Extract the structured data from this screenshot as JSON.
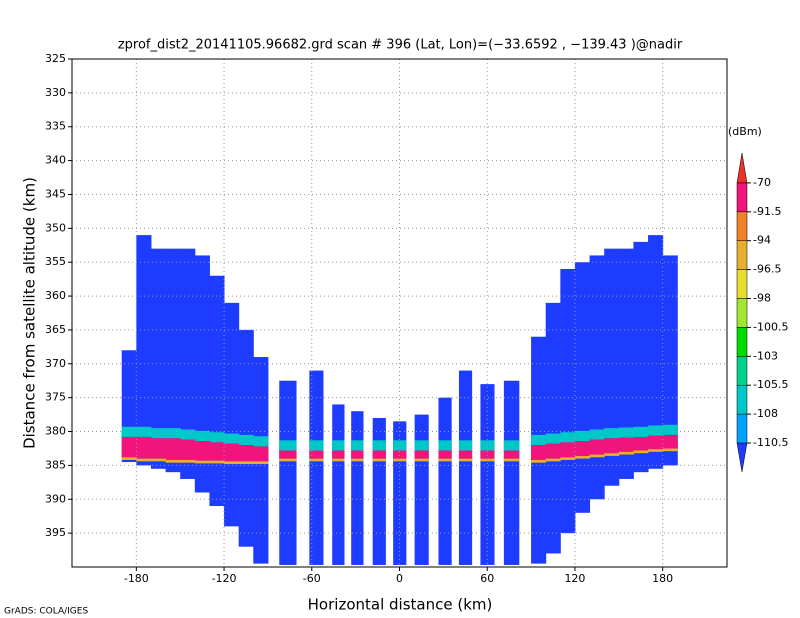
{
  "chart_data": {
    "type": "profile",
    "title": "zprof_dist2_20141105.96682.grd  scan # 396  (Lat, Lon)=(−33.6592 , −139.43 )@nadir",
    "x_label": "Horizontal distance (km)",
    "y_label": "Distance from satellite altitude (km)",
    "footer": "GrADS: COLA/IGES",
    "xlim": [
      -224,
      224
    ],
    "xticks": [
      -180,
      -120,
      -60,
      0,
      60,
      120,
      180
    ],
    "ylim": [
      325,
      400
    ],
    "yticks": [
      325,
      330,
      335,
      340,
      345,
      350,
      355,
      360,
      365,
      370,
      375,
      380,
      385,
      390,
      395
    ],
    "y_inverted": true,
    "grid": true,
    "x": [
      -185,
      -175,
      -165,
      -155,
      -145,
      -135,
      -125,
      -115,
      -105,
      -95,
      -76.5,
      -57,
      -42,
      -29,
      -14,
      0,
      15,
      31,
      45,
      60,
      76.5,
      95,
      105,
      115,
      125,
      135,
      145,
      155,
      165,
      175,
      185
    ],
    "layers": [
      {
        "value": -112,
        "top": [
          368,
          351,
          353,
          353,
          353,
          354,
          357,
          361,
          365,
          369,
          372.5,
          371,
          376,
          377,
          378,
          378.5,
          377.5,
          375,
          371,
          373,
          372.5,
          366,
          361,
          356,
          355,
          354,
          353,
          353,
          352,
          351,
          354
        ],
        "bottom": [
          384.5,
          385,
          385.5,
          386,
          387,
          389,
          391,
          394,
          397,
          399.5,
          399.7,
          399.7,
          399.7,
          399.7,
          399.7,
          399.7,
          399.7,
          399.7,
          399.7,
          399.7,
          399.7,
          399.5,
          398,
          395,
          392,
          390,
          388,
          387,
          386,
          385.5,
          385
        ]
      },
      {
        "value": -107,
        "top": [
          379.3,
          379.3,
          379.5,
          379.5,
          379.7,
          379.9,
          380.1,
          380.3,
          380.5,
          380.7,
          381.3,
          381.3,
          381.3,
          381.3,
          381.3,
          381.3,
          381.3,
          381.3,
          381.3,
          381.3,
          381.3,
          380.5,
          380.3,
          380.1,
          379.9,
          379.7,
          379.5,
          379.4,
          379.3,
          379.1,
          379
        ],
        "bottom": [
          380.8,
          380.8,
          381,
          381,
          381.2,
          381.4,
          381.6,
          381.8,
          382,
          382.2,
          382.8,
          382.8,
          382.8,
          382.8,
          382.8,
          382.8,
          382.8,
          382.8,
          382.8,
          382.8,
          382.8,
          382,
          381.8,
          381.6,
          381.4,
          381.2,
          381,
          380.9,
          380.8,
          380.6,
          380.5
        ]
      },
      {
        "value": -85,
        "top": [
          380.8,
          380.8,
          381,
          381,
          381.2,
          381.4,
          381.6,
          381.8,
          382,
          382.2,
          382.8,
          382.8,
          382.8,
          382.8,
          382.8,
          382.8,
          382.8,
          382.8,
          382.8,
          382.8,
          382.8,
          382,
          381.8,
          381.6,
          381.4,
          381.2,
          381,
          380.9,
          380.8,
          380.6,
          380.5
        ],
        "bottom": [
          383.8,
          384,
          384,
          384.2,
          384.2,
          384.3,
          384.3,
          384.4,
          384.4,
          384.4,
          384,
          384,
          384,
          384,
          384,
          384,
          384,
          384,
          384,
          384,
          384,
          384.2,
          384,
          383.8,
          383.6,
          383.4,
          383.2,
          383,
          382.8,
          382.6,
          382.5
        ]
      },
      {
        "value": -95,
        "top": [
          383.8,
          384,
          384,
          384.2,
          384.2,
          384.3,
          384.3,
          384.4,
          384.4,
          384.4,
          384,
          384,
          384,
          384,
          384,
          384,
          384,
          384,
          384,
          384,
          384,
          384.2,
          384,
          383.8,
          383.6,
          383.4,
          383.2,
          383,
          382.8,
          382.6,
          382.5
        ],
        "bottom": [
          384.2,
          384.4,
          384.4,
          384.6,
          384.6,
          384.7,
          384.7,
          384.8,
          384.8,
          384.8,
          384.4,
          384.4,
          384.4,
          384.4,
          384.4,
          384.4,
          384.4,
          384.4,
          384.4,
          384.4,
          384.4,
          384.6,
          384.4,
          384.2,
          384,
          383.8,
          383.6,
          383.4,
          383.2,
          383,
          382.9
        ]
      }
    ],
    "colorbar": {
      "unit": "(dBm)",
      "levels": [
        -110.5,
        -108,
        -105.5,
        -103,
        -100.5,
        -98,
        -96.5,
        -94,
        -91.5,
        -70
      ],
      "colors": [
        "#1e3cff",
        "#00a0ff",
        "#00c8c8",
        "#00d28c",
        "#00dc00",
        "#a0e632",
        "#e6dc32",
        "#e6af2d",
        "#f08228",
        "#f0147c",
        "#e8322a"
      ]
    }
  }
}
